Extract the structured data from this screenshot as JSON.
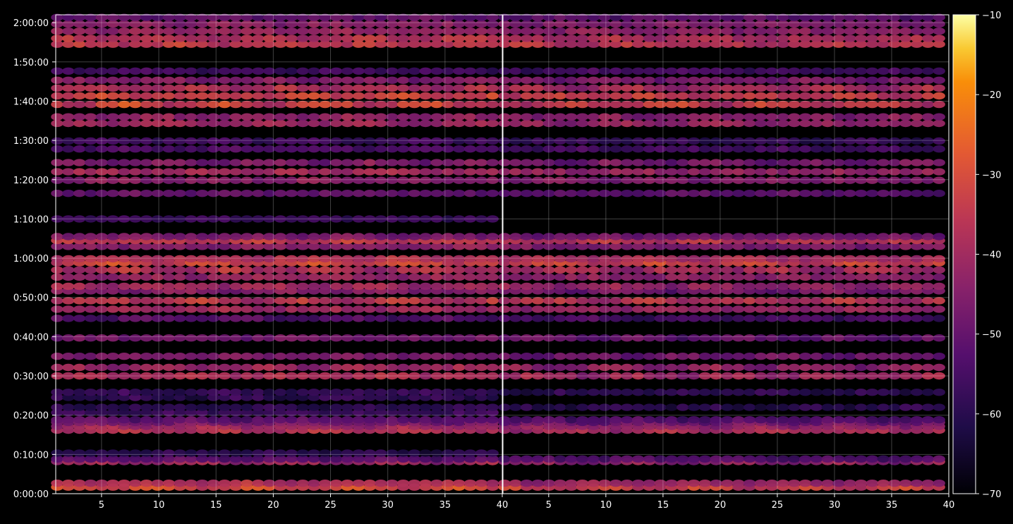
{
  "chart_data": {
    "type": "heatmap",
    "colormap": "inferno",
    "background": "#000000",
    "grid": true,
    "colorbar": {
      "position": "right",
      "range": [
        -70,
        -10
      ],
      "ticks": [
        -70,
        -60,
        -50,
        -40,
        -30,
        -20,
        -10
      ],
      "tick_labels": [
        "−70",
        "−60",
        "−50",
        "−40",
        "−30",
        "−20",
        "−10"
      ]
    },
    "y_axis": {
      "unit": "seconds",
      "range": [
        0,
        7320
      ],
      "ticks": [
        0,
        600,
        1200,
        1800,
        2400,
        3000,
        3600,
        4200,
        4800,
        5400,
        6000,
        6600,
        7200
      ],
      "tick_labels": [
        "0:00:00",
        "0:10:00",
        "0:20:00",
        "0:30:00",
        "0:40:00",
        "0:50:00",
        "1:00:00",
        "1:10:00",
        "1:20:00",
        "1:30:00",
        "1:40:00",
        "1:50:00",
        "2:00:00"
      ]
    },
    "x_axis": {
      "range": [
        1,
        40
      ],
      "ticks": [
        5,
        10,
        15,
        20,
        25,
        30,
        35,
        40
      ],
      "tick_labels": [
        "5",
        "10",
        "15",
        "20",
        "25",
        "30",
        "35",
        "40"
      ]
    },
    "panels": [
      {
        "name": "left",
        "x_range": [
          1,
          40
        ],
        "bands": [
          {
            "t": 100,
            "v": [
              -35,
              -28
            ]
          },
          {
            "t": 160,
            "v": [
              -40,
              -35
            ]
          },
          {
            "t": 490,
            "v": [
              -45,
              -38
            ]
          },
          {
            "t": 530,
            "v": [
              -55,
              -50
            ]
          },
          {
            "t": 620,
            "v": [
              -62,
              -58
            ]
          },
          {
            "t": 970,
            "v": [
              -40,
              -35
            ]
          },
          {
            "t": 1030,
            "v": [
              -44,
              -38
            ]
          },
          {
            "t": 1090,
            "v": [
              -50,
              -45
            ]
          },
          {
            "t": 1130,
            "v": [
              -54,
              -50
            ]
          },
          {
            "t": 1240,
            "v": [
              -58,
              -55
            ]
          },
          {
            "t": 1320,
            "v": [
              -62,
              -58
            ]
          },
          {
            "t": 1470,
            "v": [
              -62,
              -56
            ]
          },
          {
            "t": 1550,
            "v": [
              -60,
              -56
            ]
          },
          {
            "t": 1800,
            "v": [
              -40,
              -36
            ]
          },
          {
            "t": 1930,
            "v": [
              -45,
              -38
            ]
          },
          {
            "t": 2100,
            "v": [
              -48,
              -45
            ]
          },
          {
            "t": 2380,
            "v": [
              -50,
              -46
            ]
          },
          {
            "t": 2680,
            "v": [
              -56,
              -50
            ]
          },
          {
            "t": 2820,
            "v": [
              -42,
              -38
            ]
          },
          {
            "t": 2950,
            "v": [
              -40,
              -32
            ]
          },
          {
            "t": 3100,
            "v": [
              -48,
              -42
            ]
          },
          {
            "t": 3170,
            "v": [
              -42,
              -38
            ]
          },
          {
            "t": 3310,
            "v": [
              -44,
              -40
            ]
          },
          {
            "t": 3420,
            "v": [
              -42,
              -34
            ]
          },
          {
            "t": 3530,
            "v": [
              -36,
              -28
            ]
          },
          {
            "t": 3590,
            "v": [
              -40,
              -35
            ]
          },
          {
            "t": 3780,
            "v": [
              -46,
              -42
            ]
          },
          {
            "t": 3870,
            "v": [
              -38,
              -32
            ]
          },
          {
            "t": 3930,
            "v": [
              -48,
              -45
            ]
          },
          {
            "t": 4200,
            "v": [
              -58,
              -55
            ]
          },
          {
            "t": 4590,
            "v": [
              -52,
              -48
            ]
          },
          {
            "t": 4790,
            "v": [
              -46,
              -42
            ]
          },
          {
            "t": 4920,
            "v": [
              -42,
              -38
            ]
          },
          {
            "t": 5060,
            "v": [
              -50,
              -42
            ]
          },
          {
            "t": 5270,
            "v": [
              -56,
              -52
            ]
          },
          {
            "t": 5390,
            "v": [
              -58,
              -54
            ]
          },
          {
            "t": 5660,
            "v": [
              -44,
              -38
            ]
          },
          {
            "t": 5760,
            "v": [
              -46,
              -40
            ]
          },
          {
            "t": 5950,
            "v": [
              -38,
              -28
            ]
          },
          {
            "t": 6080,
            "v": [
              -36,
              -30
            ]
          },
          {
            "t": 6200,
            "v": [
              -42,
              -35
            ]
          },
          {
            "t": 6320,
            "v": [
              -48,
              -42
            ]
          },
          {
            "t": 6460,
            "v": [
              -58,
              -54
            ]
          },
          {
            "t": 6870,
            "v": [
              -38,
              -32
            ]
          },
          {
            "t": 6960,
            "v": [
              -40,
              -34
            ]
          },
          {
            "t": 7070,
            "v": [
              -44,
              -40
            ]
          },
          {
            "t": 7180,
            "v": [
              -46,
              -42
            ]
          },
          {
            "t": 7280,
            "v": [
              -52,
              -48
            ]
          }
        ]
      },
      {
        "name": "right",
        "x_range": [
          1,
          40
        ],
        "bands": [
          {
            "t": 100,
            "v": [
              -38,
              -30
            ]
          },
          {
            "t": 160,
            "v": [
              -44,
              -40
            ]
          },
          {
            "t": 490,
            "v": [
              -48,
              -40
            ]
          },
          {
            "t": 530,
            "v": [
              -56,
              -52
            ]
          },
          {
            "t": 970,
            "v": [
              -42,
              -36
            ]
          },
          {
            "t": 1030,
            "v": [
              -46,
              -40
            ]
          },
          {
            "t": 1090,
            "v": [
              -52,
              -46
            ]
          },
          {
            "t": 1130,
            "v": [
              -56,
              -52
            ]
          },
          {
            "t": 1320,
            "v": [
              -62,
              -58
            ]
          },
          {
            "t": 1550,
            "v": [
              -62,
              -58
            ]
          },
          {
            "t": 1800,
            "v": [
              -44,
              -38
            ]
          },
          {
            "t": 1930,
            "v": [
              -48,
              -40
            ]
          },
          {
            "t": 2100,
            "v": [
              -52,
              -46
            ]
          },
          {
            "t": 2380,
            "v": [
              -54,
              -48
            ]
          },
          {
            "t": 2680,
            "v": [
              -58,
              -52
            ]
          },
          {
            "t": 2820,
            "v": [
              -44,
              -40
            ]
          },
          {
            "t": 2950,
            "v": [
              -42,
              -34
            ]
          },
          {
            "t": 3100,
            "v": [
              -52,
              -44
            ]
          },
          {
            "t": 3170,
            "v": [
              -46,
              -40
            ]
          },
          {
            "t": 3310,
            "v": [
              -46,
              -42
            ]
          },
          {
            "t": 3420,
            "v": [
              -44,
              -36
            ]
          },
          {
            "t": 3530,
            "v": [
              -38,
              -30
            ]
          },
          {
            "t": 3590,
            "v": [
              -42,
              -36
            ]
          },
          {
            "t": 3780,
            "v": [
              -48,
              -44
            ]
          },
          {
            "t": 3870,
            "v": [
              -40,
              -34
            ]
          },
          {
            "t": 3930,
            "v": [
              -50,
              -46
            ]
          },
          {
            "t": 4590,
            "v": [
              -54,
              -50
            ]
          },
          {
            "t": 4790,
            "v": [
              -48,
              -44
            ]
          },
          {
            "t": 4920,
            "v": [
              -44,
              -40
            ]
          },
          {
            "t": 5060,
            "v": [
              -52,
              -44
            ]
          },
          {
            "t": 5270,
            "v": [
              -58,
              -54
            ]
          },
          {
            "t": 5390,
            "v": [
              -60,
              -56
            ]
          },
          {
            "t": 5660,
            "v": [
              -46,
              -40
            ]
          },
          {
            "t": 5760,
            "v": [
              -48,
              -42
            ]
          },
          {
            "t": 5950,
            "v": [
              -40,
              -30
            ]
          },
          {
            "t": 6080,
            "v": [
              -38,
              -32
            ]
          },
          {
            "t": 6200,
            "v": [
              -44,
              -36
            ]
          },
          {
            "t": 6320,
            "v": [
              -50,
              -44
            ]
          },
          {
            "t": 6460,
            "v": [
              -58,
              -54
            ]
          },
          {
            "t": 6870,
            "v": [
              -40,
              -34
            ]
          },
          {
            "t": 6960,
            "v": [
              -42,
              -36
            ]
          },
          {
            "t": 7070,
            "v": [
              -46,
              -42
            ]
          },
          {
            "t": 7180,
            "v": [
              -48,
              -44
            ]
          },
          {
            "t": 7280,
            "v": [
              -54,
              -50
            ]
          }
        ]
      }
    ]
  }
}
